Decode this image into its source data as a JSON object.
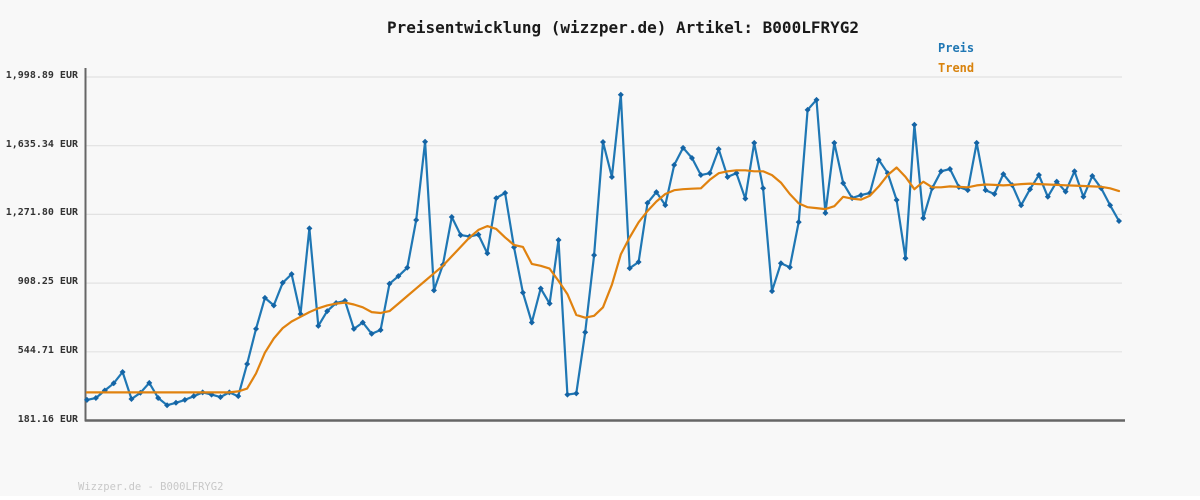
{
  "title": {
    "text": "Preisentwicklung (wizzper.de) Artikel: B000LFRYG2"
  },
  "footer": {
    "text": "Wizzper.de - B000LFRYG2"
  },
  "colors": {
    "price": "#1f77b4",
    "price_marker": "#1464a5",
    "trend": "#e0820f",
    "grid": "#e2e2e2",
    "axis": "#666666",
    "background": "#f8f8f8",
    "title_text": "#1a1a1a",
    "tick_text": "#333333",
    "footer_text": "#c8c8c8"
  },
  "chart_data": {
    "type": "line",
    "title": "Preisentwicklung (wizzper.de) Artikel: B000LFRYG2",
    "xlabel": "",
    "ylabel": "EUR",
    "ylim": [
      181.16,
      1998.89
    ],
    "grid": "horizontal",
    "legend_position": "top-right",
    "yticks": [
      {
        "value": 1998.89,
        "label": "1,998.89 EUR"
      },
      {
        "value": 1635.34,
        "label": "1,635.34 EUR"
      },
      {
        "value": 1271.8,
        "label": "1,271.80 EUR"
      },
      {
        "value": 908.25,
        "label": "908.25 EUR"
      },
      {
        "value": 544.71,
        "label": "544.71 EUR"
      },
      {
        "value": 181.16,
        "label": "181.16 EUR"
      }
    ],
    "series": [
      {
        "name": "Preis",
        "color": "#1f77b4",
        "marker": "diamond",
        "values": [
          290,
          300,
          340,
          378,
          438,
          295,
          328,
          380,
          300,
          262,
          275,
          290,
          310,
          330,
          318,
          305,
          330,
          310,
          480,
          666,
          830,
          790,
          910,
          956,
          745,
          1198,
          682,
          760,
          803,
          814,
          666,
          700,
          640,
          660,
          905,
          945,
          990,
          1242,
          1656,
          870,
          1005,
          1258,
          1162,
          1155,
          1165,
          1066,
          1358,
          1385,
          1098,
          858,
          700,
          880,
          800,
          1136,
          318,
          325,
          648,
          1056,
          1655,
          1470,
          1905,
          987,
          1020,
          1332,
          1390,
          1321,
          1533,
          1624,
          1570,
          1480,
          1490,
          1617,
          1470,
          1490,
          1355,
          1650,
          1410,
          866,
          1013,
          992,
          1231,
          1825,
          1878,
          1279,
          1650,
          1437,
          1358,
          1374,
          1385,
          1560,
          1490,
          1348,
          1040,
          1746,
          1252,
          1411,
          1500,
          1512,
          1417,
          1400,
          1650,
          1400,
          1380,
          1485,
          1427,
          1320,
          1405,
          1480,
          1365,
          1445,
          1392,
          1500,
          1365,
          1475,
          1410,
          1320,
          1237
        ]
      },
      {
        "name": "Trend",
        "color": "#e0820f",
        "marker": "none",
        "values": [
          330,
          330,
          330,
          330,
          330,
          330,
          330,
          330,
          330,
          330,
          330,
          330,
          330,
          330,
          330,
          330,
          330,
          335,
          350,
          430,
          540,
          615,
          670,
          705,
          730,
          755,
          775,
          790,
          800,
          805,
          795,
          780,
          755,
          750,
          760,
          800,
          840,
          880,
          920,
          960,
          1000,
          1050,
          1100,
          1150,
          1190,
          1210,
          1195,
          1150,
          1110,
          1100,
          1010,
          1000,
          985,
          920,
          850,
          740,
          725,
          735,
          780,
          900,
          1060,
          1150,
          1230,
          1290,
          1340,
          1380,
          1400,
          1405,
          1408,
          1410,
          1455,
          1490,
          1500,
          1505,
          1505,
          1500,
          1500,
          1480,
          1440,
          1380,
          1330,
          1310,
          1305,
          1300,
          1315,
          1365,
          1355,
          1350,
          1370,
          1420,
          1480,
          1520,
          1470,
          1405,
          1445,
          1415,
          1415,
          1420,
          1418,
          1415,
          1425,
          1430,
          1428,
          1425,
          1428,
          1432,
          1435,
          1432,
          1430,
          1428,
          1426,
          1424,
          1422,
          1420,
          1418,
          1410,
          1395
        ]
      }
    ]
  }
}
